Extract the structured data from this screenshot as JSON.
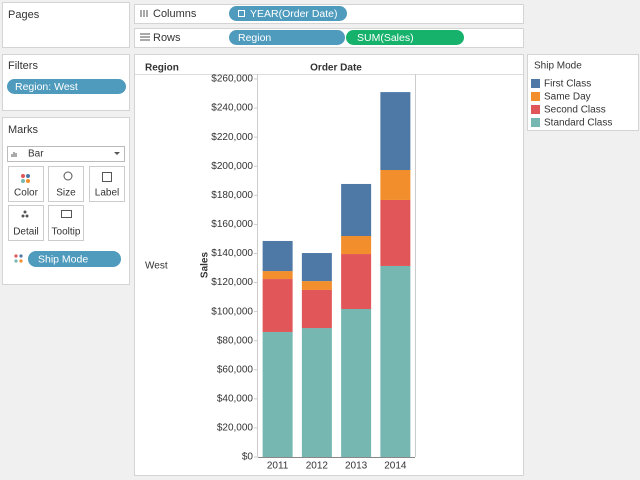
{
  "pages": {
    "title": "Pages"
  },
  "filters": {
    "title": "Filters",
    "pills": [
      "Region: West"
    ]
  },
  "marks": {
    "title": "Marks",
    "mark_type": "Bar",
    "buttons": [
      "Color",
      "Size",
      "Label",
      "Detail",
      "Tooltip"
    ],
    "pills": [
      "Ship Mode"
    ]
  },
  "shelves": {
    "columns": {
      "label": "Columns",
      "pills": [
        "YEAR(Order Date)"
      ]
    },
    "rows": {
      "label": "Rows",
      "pills": [
        "Region",
        "SUM(Sales)"
      ]
    }
  },
  "chart_data": {
    "type": "bar",
    "stacked": true,
    "row_header": "Region",
    "column_header": "Order Date",
    "row_label": "West",
    "y_label": "Sales",
    "legend_title": "Ship Mode",
    "categories": [
      "2011",
      "2012",
      "2013",
      "2014"
    ],
    "series": [
      {
        "name": "First Class",
        "color": "#4e79a7",
        "values": [
          20700,
          19300,
          35800,
          53600
        ]
      },
      {
        "name": "Same Day",
        "color": "#f28e2b",
        "values": [
          5500,
          6100,
          12400,
          20600
        ]
      },
      {
        "name": "Second Class",
        "color": "#e15759",
        "values": [
          36400,
          26200,
          37800,
          45400
        ]
      },
      {
        "name": "Standard Class",
        "color": "#76b7b2",
        "values": [
          86000,
          88700,
          101800,
          131400
        ]
      }
    ],
    "ylim": [
      0,
      260000
    ],
    "yticks": [
      {
        "value": 0,
        "label": "$0"
      },
      {
        "value": 20000,
        "label": "$20,000"
      },
      {
        "value": 40000,
        "label": "$40,000"
      },
      {
        "value": 60000,
        "label": "$60,000"
      },
      {
        "value": 80000,
        "label": "$80,000"
      },
      {
        "value": 100000,
        "label": "$100,000"
      },
      {
        "value": 120000,
        "label": "$120,000"
      },
      {
        "value": 140000,
        "label": "$140,000"
      },
      {
        "value": 160000,
        "label": "$160,000"
      },
      {
        "value": 180000,
        "label": "$180,000"
      },
      {
        "value": 200000,
        "label": "$200,000"
      },
      {
        "value": 220000,
        "label": "$220,000"
      },
      {
        "value": 240000,
        "label": "$240,000"
      },
      {
        "value": 260000,
        "label": "$260,000"
      }
    ]
  }
}
